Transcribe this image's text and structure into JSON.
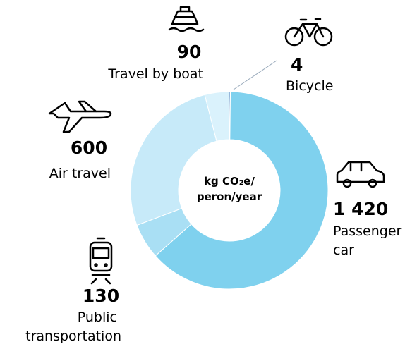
{
  "chart_data": {
    "type": "donut",
    "center_label": [
      "kg CO₂e/",
      "peron/year"
    ],
    "categories": [
      "Bicycle",
      "Passenger car",
      "Public transportation",
      "Air travel",
      "Travel by boat"
    ],
    "values": [
      4,
      1420,
      130,
      600,
      90
    ],
    "value_labels": [
      "4",
      "1 420",
      "130",
      "600",
      "90"
    ],
    "colors": [
      "#2f6fb5",
      "#7fd1ee",
      "#a9dff4",
      "#c7eaf9",
      "#daf2fc"
    ]
  }
}
